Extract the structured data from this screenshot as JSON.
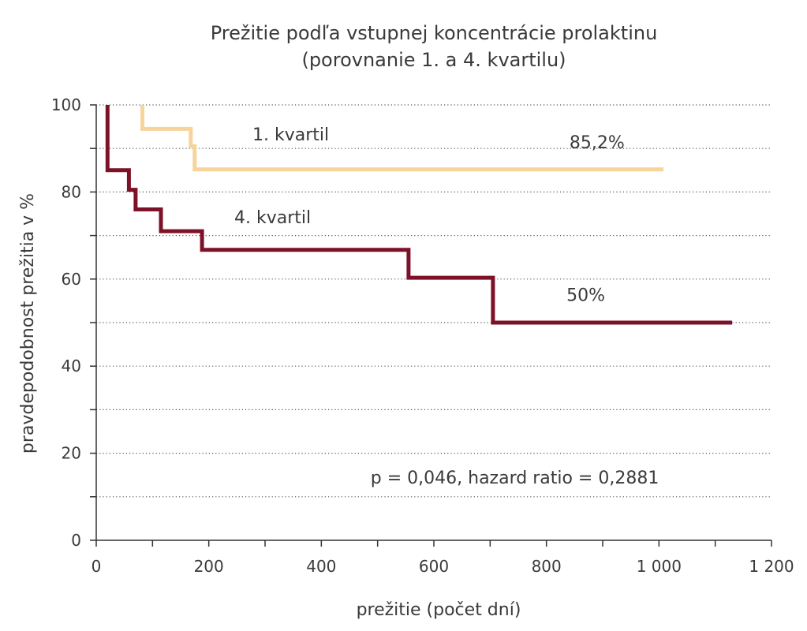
{
  "chart_data": {
    "type": "line",
    "subtype": "kaplan-meier-step",
    "title": "Prežitie podľa vstupnej koncentrácie prolaktinu",
    "subtitle": "(porovnanie 1. a 4. kvartilu)",
    "xlabel": "prežitie (počet dní)",
    "ylabel": "pravdepodobnost prežitia v %",
    "xlim": [
      0,
      1200
    ],
    "ylim": [
      0,
      100
    ],
    "x_ticks": [
      0,
      200,
      400,
      600,
      800,
      1000,
      1200
    ],
    "x_tick_labels": [
      "0",
      "200",
      "400",
      "600",
      "800",
      "1 000",
      "1 200"
    ],
    "y_ticks": [
      0,
      20,
      40,
      60,
      80,
      100
    ],
    "y_tick_labels": [
      "0",
      "20",
      "40",
      "60",
      "80",
      "100"
    ],
    "y_gridlines": [
      10,
      20,
      30,
      40,
      50,
      60,
      70,
      80,
      90,
      100
    ],
    "grid": "dotted horizontal",
    "series": [
      {
        "name": "1. kvartil",
        "color": "#f6d49b",
        "points": [
          [
            82,
            100
          ],
          [
            82,
            94.5
          ],
          [
            168,
            94.5
          ],
          [
            168,
            90.5
          ],
          [
            175,
            90.5
          ],
          [
            175,
            85.2
          ],
          [
            1008,
            85.2
          ]
        ]
      },
      {
        "name": "4. kvartil",
        "color": "#7d1128",
        "points": [
          [
            20,
            100
          ],
          [
            20,
            85
          ],
          [
            58,
            85
          ],
          [
            58,
            80.5
          ],
          [
            70,
            80.5
          ],
          [
            70,
            76
          ],
          [
            115,
            76
          ],
          [
            115,
            71
          ],
          [
            188,
            71
          ],
          [
            188,
            66.7
          ],
          [
            555,
            66.7
          ],
          [
            555,
            60.3
          ],
          [
            705,
            60.3
          ],
          [
            705,
            50
          ],
          [
            1130,
            50
          ]
        ]
      }
    ],
    "annotations": [
      {
        "text": "85,2%",
        "x": 890,
        "y": 90
      },
      {
        "text": "50%",
        "x": 870,
        "y": 55
      },
      {
        "text": "p = 0,046, hazard ratio = 0,2881",
        "x": 1000,
        "y": 13
      }
    ]
  }
}
